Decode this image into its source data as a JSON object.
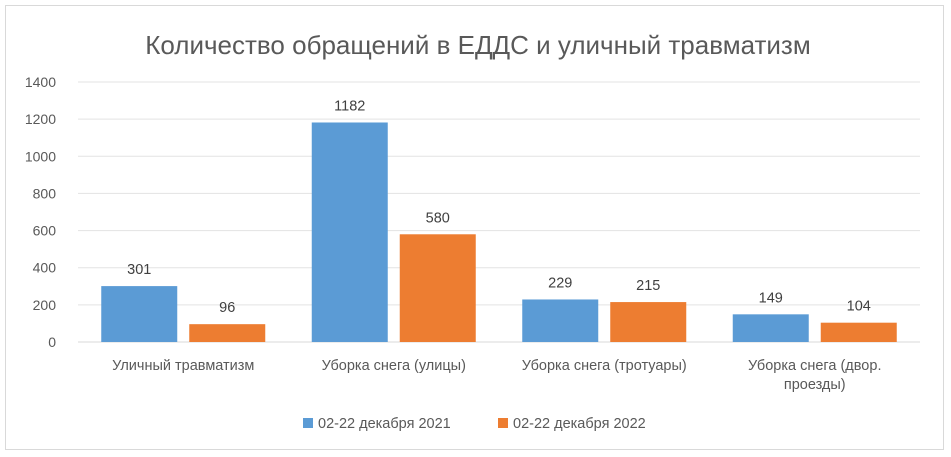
{
  "chart_data": {
    "type": "bar",
    "title": "Количество обращений в ЕДДС и уличный травматизм",
    "categories": [
      [
        "Уличный травматизм"
      ],
      [
        "Уборка снега (улицы)"
      ],
      [
        "Уборка снега (тротуары)"
      ],
      [
        "Уборка снега (двор.",
        "проезды)"
      ]
    ],
    "series": [
      {
        "name": "02-22 декабря 2021",
        "color": "#5b9bd5",
        "values": [
          301,
          1182,
          229,
          149
        ]
      },
      {
        "name": "02-22 декабря 2022",
        "color": "#ed7d31",
        "values": [
          96,
          580,
          215,
          104
        ]
      }
    ],
    "ylim": [
      0,
      1400
    ],
    "yticks": [
      0,
      200,
      400,
      600,
      800,
      1000,
      1200,
      1400
    ],
    "grid": true,
    "legend": "bottom",
    "xlabel": "",
    "ylabel": ""
  }
}
